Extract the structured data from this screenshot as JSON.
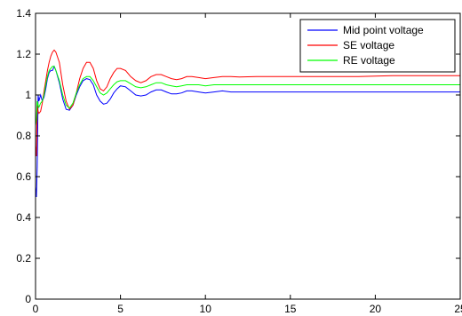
{
  "chart_data": {
    "type": "line",
    "title": "",
    "xlabel": "",
    "ylabel": "",
    "xlim": [
      0,
      25
    ],
    "ylim": [
      0,
      1.4
    ],
    "xticks": [
      "0",
      "5",
      "10",
      "15",
      "20",
      "25"
    ],
    "yticks": [
      "0",
      "0.2",
      "0.4",
      "0.6",
      "0.8",
      "1",
      "1.2",
      "1.4"
    ],
    "grid": false,
    "legend_position": "top-right",
    "series": [
      {
        "name": "Mid point voltage",
        "color": "#0000ff",
        "x": [
          0,
          0.05,
          0.1,
          0.15,
          0.2,
          0.3,
          0.4,
          0.5,
          0.6,
          0.7,
          0.8,
          0.9,
          1.0,
          1.1,
          1.2,
          1.4,
          1.6,
          1.8,
          2.0,
          2.2,
          2.4,
          2.6,
          2.8,
          3.0,
          3.2,
          3.4,
          3.6,
          3.8,
          4.0,
          4.2,
          4.4,
          4.6,
          4.8,
          5.0,
          5.3,
          5.6,
          5.9,
          6.2,
          6.5,
          6.8,
          7.1,
          7.4,
          7.7,
          8.0,
          8.3,
          8.6,
          8.9,
          9.2,
          9.6,
          10,
          10.5,
          11,
          11.5,
          12,
          13,
          14,
          15,
          17,
          19,
          21,
          23,
          25
        ],
        "y": [
          0.55,
          0.5,
          0.65,
          1.0,
          0.97,
          1.0,
          0.97,
          0.99,
          1.03,
          1.08,
          1.11,
          1.12,
          1.12,
          1.14,
          1.12,
          1.06,
          0.98,
          0.93,
          0.925,
          0.95,
          1.0,
          1.04,
          1.07,
          1.08,
          1.075,
          1.05,
          1.0,
          0.97,
          0.955,
          0.96,
          0.98,
          1.01,
          1.03,
          1.045,
          1.04,
          1.02,
          1.0,
          0.995,
          1.0,
          1.015,
          1.025,
          1.025,
          1.015,
          1.005,
          1.005,
          1.01,
          1.02,
          1.02,
          1.015,
          1.01,
          1.015,
          1.02,
          1.015,
          1.015,
          1.015,
          1.015,
          1.015,
          1.015,
          1.015,
          1.015,
          1.015,
          1.015
        ]
      },
      {
        "name": "SE voltage",
        "color": "#ff0000",
        "x": [
          0,
          0.05,
          0.1,
          0.15,
          0.2,
          0.3,
          0.4,
          0.5,
          0.6,
          0.7,
          0.8,
          0.9,
          1.0,
          1.1,
          1.2,
          1.4,
          1.6,
          1.8,
          2.0,
          2.2,
          2.4,
          2.6,
          2.8,
          3.0,
          3.2,
          3.4,
          3.6,
          3.8,
          4.0,
          4.2,
          4.4,
          4.6,
          4.8,
          5.0,
          5.3,
          5.6,
          5.9,
          6.2,
          6.5,
          6.8,
          7.1,
          7.4,
          7.7,
          8.0,
          8.3,
          8.6,
          8.9,
          9.2,
          9.6,
          10,
          10.5,
          11,
          11.5,
          12,
          13,
          14,
          15,
          17,
          19,
          21,
          23,
          25
        ],
        "y": [
          0.75,
          0.7,
          0.95,
          0.92,
          0.91,
          0.92,
          0.96,
          1.02,
          1.07,
          1.12,
          1.16,
          1.19,
          1.21,
          1.22,
          1.21,
          1.16,
          1.05,
          0.97,
          0.93,
          0.95,
          1.01,
          1.08,
          1.13,
          1.16,
          1.16,
          1.13,
          1.07,
          1.03,
          1.02,
          1.04,
          1.08,
          1.11,
          1.13,
          1.13,
          1.12,
          1.09,
          1.07,
          1.06,
          1.07,
          1.09,
          1.1,
          1.1,
          1.09,
          1.08,
          1.075,
          1.08,
          1.09,
          1.09,
          1.085,
          1.08,
          1.085,
          1.09,
          1.09,
          1.088,
          1.09,
          1.09,
          1.09,
          1.09,
          1.09,
          1.095,
          1.095,
          1.095
        ]
      },
      {
        "name": "RE voltage",
        "color": "#00ff00",
        "x": [
          0,
          0.05,
          0.1,
          0.15,
          0.2,
          0.3,
          0.4,
          0.5,
          0.6,
          0.7,
          0.8,
          0.9,
          1.0,
          1.1,
          1.2,
          1.4,
          1.6,
          1.8,
          2.0,
          2.2,
          2.4,
          2.6,
          2.8,
          3.0,
          3.2,
          3.4,
          3.6,
          3.8,
          4.0,
          4.2,
          4.4,
          4.6,
          4.8,
          5.0,
          5.3,
          5.6,
          5.9,
          6.2,
          6.5,
          6.8,
          7.1,
          7.4,
          7.7,
          8.0,
          8.3,
          8.6,
          8.9,
          9.2,
          9.6,
          10,
          10.5,
          11,
          11.5,
          12,
          13,
          14,
          15,
          17,
          19,
          21,
          23,
          25
        ],
        "y": [
          0.85,
          0.88,
          0.97,
          0.95,
          0.94,
          0.96,
          0.97,
          1.0,
          1.05,
          1.09,
          1.12,
          1.13,
          1.14,
          1.14,
          1.12,
          1.07,
          1.0,
          0.95,
          0.935,
          0.96,
          1.01,
          1.05,
          1.08,
          1.09,
          1.09,
          1.07,
          1.04,
          1.01,
          1.0,
          1.01,
          1.03,
          1.05,
          1.065,
          1.07,
          1.07,
          1.055,
          1.04,
          1.035,
          1.04,
          1.05,
          1.06,
          1.06,
          1.05,
          1.045,
          1.04,
          1.045,
          1.05,
          1.05,
          1.05,
          1.045,
          1.05,
          1.05,
          1.05,
          1.05,
          1.05,
          1.05,
          1.05,
          1.05,
          1.05,
          1.05,
          1.05,
          1.05
        ]
      }
    ]
  }
}
